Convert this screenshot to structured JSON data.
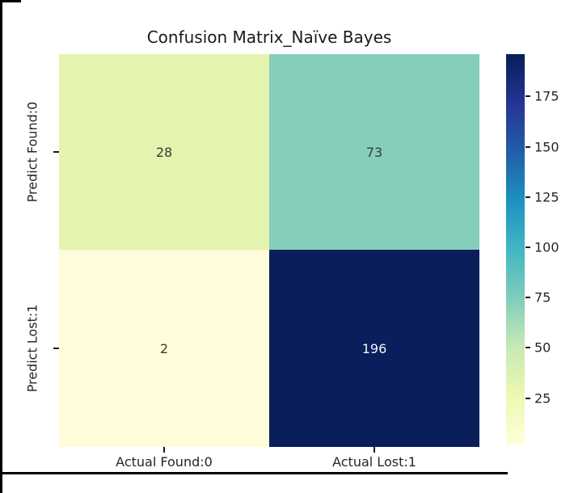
{
  "window": {
    "background": "#ffffff",
    "border_color": "#000000"
  },
  "chart_data": {
    "type": "heatmap",
    "title": "Confusion Matrix_Naïve Bayes",
    "x_categories": [
      "Actual Found:0",
      "Actual Lost:1"
    ],
    "y_categories": [
      "Predict Found:0",
      "Predict Lost:1"
    ],
    "values": [
      [
        28,
        73
      ],
      [
        2,
        196
      ]
    ],
    "cell_colors": [
      [
        "#e4f3ae",
        "#85ceba"
      ],
      [
        "#fffcd9",
        "#0a1e5c"
      ]
    ],
    "cell_text_colors": [
      [
        "#3a3a3a",
        "#3a3a3a"
      ],
      [
        "#3a3a3a",
        "#f5f5f5"
      ]
    ],
    "colormap": "YlGnBu",
    "colormap_stops": [
      {
        "pos": 0.0,
        "color": "#ffffd9"
      },
      {
        "pos": 0.125,
        "color": "#edf8b1"
      },
      {
        "pos": 0.25,
        "color": "#c7e9b4"
      },
      {
        "pos": 0.375,
        "color": "#7fcdbb"
      },
      {
        "pos": 0.5,
        "color": "#41b6c4"
      },
      {
        "pos": 0.625,
        "color": "#1d91c0"
      },
      {
        "pos": 0.75,
        "color": "#225ea8"
      },
      {
        "pos": 0.875,
        "color": "#253494"
      },
      {
        "pos": 1.0,
        "color": "#081d58"
      }
    ],
    "colorbar": {
      "position": "right",
      "vmin": 2,
      "vmax": 196,
      "ticks": [
        25,
        50,
        75,
        100,
        125,
        150,
        175
      ]
    },
    "grid": false,
    "legend_position": "none",
    "axis_text_color": "#262626"
  }
}
